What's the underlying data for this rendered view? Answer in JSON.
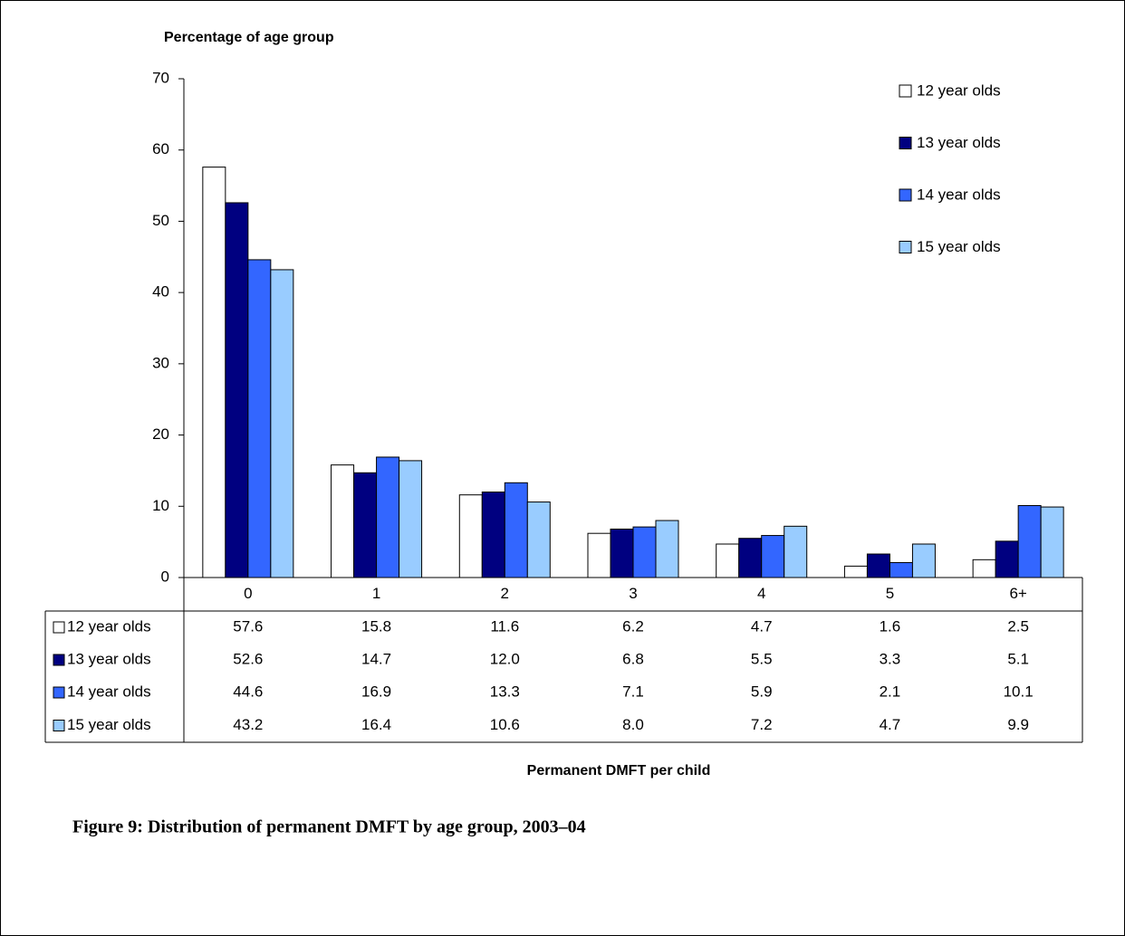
{
  "chart_data": {
    "type": "bar",
    "y_label": "Percentage of age group",
    "x_label": "Permanent DMFT per child",
    "caption": "Figure 9: Distribution of permanent DMFT by age group, 2003–04",
    "categories": [
      "0",
      "1",
      "2",
      "3",
      "4",
      "5",
      "6+"
    ],
    "series": [
      {
        "name": "12 year olds",
        "color": "#ffffff",
        "values": [
          57.6,
          15.8,
          11.6,
          6.2,
          4.7,
          1.6,
          2.5
        ],
        "value_labels": [
          "57.6",
          "15.8",
          "11.6",
          "6.2",
          "4.7",
          "1.6",
          "2.5"
        ]
      },
      {
        "name": "13 year olds",
        "color": "#000080",
        "values": [
          52.6,
          14.7,
          12.0,
          6.8,
          5.5,
          3.3,
          5.1
        ],
        "value_labels": [
          "52.6",
          "14.7",
          "12.0",
          "6.8",
          "5.5",
          "3.3",
          "5.1"
        ]
      },
      {
        "name": "14 year olds",
        "color": "#3366ff",
        "values": [
          44.6,
          16.9,
          13.3,
          7.1,
          5.9,
          2.1,
          10.1
        ],
        "value_labels": [
          "44.6",
          "16.9",
          "13.3",
          "7.1",
          "5.9",
          "2.1",
          "10.1"
        ]
      },
      {
        "name": "15 year olds",
        "color": "#99ccff",
        "values": [
          43.2,
          16.4,
          10.6,
          8.0,
          7.2,
          4.7,
          9.9
        ],
        "value_labels": [
          "43.2",
          "16.4",
          "10.6",
          "8.0",
          "7.2",
          "4.7",
          "9.9"
        ]
      }
    ],
    "ylim": [
      0,
      70
    ],
    "yticks": [
      0,
      10,
      20,
      30,
      40,
      50,
      60,
      70
    ],
    "legend": "upper right",
    "data_table": true
  }
}
